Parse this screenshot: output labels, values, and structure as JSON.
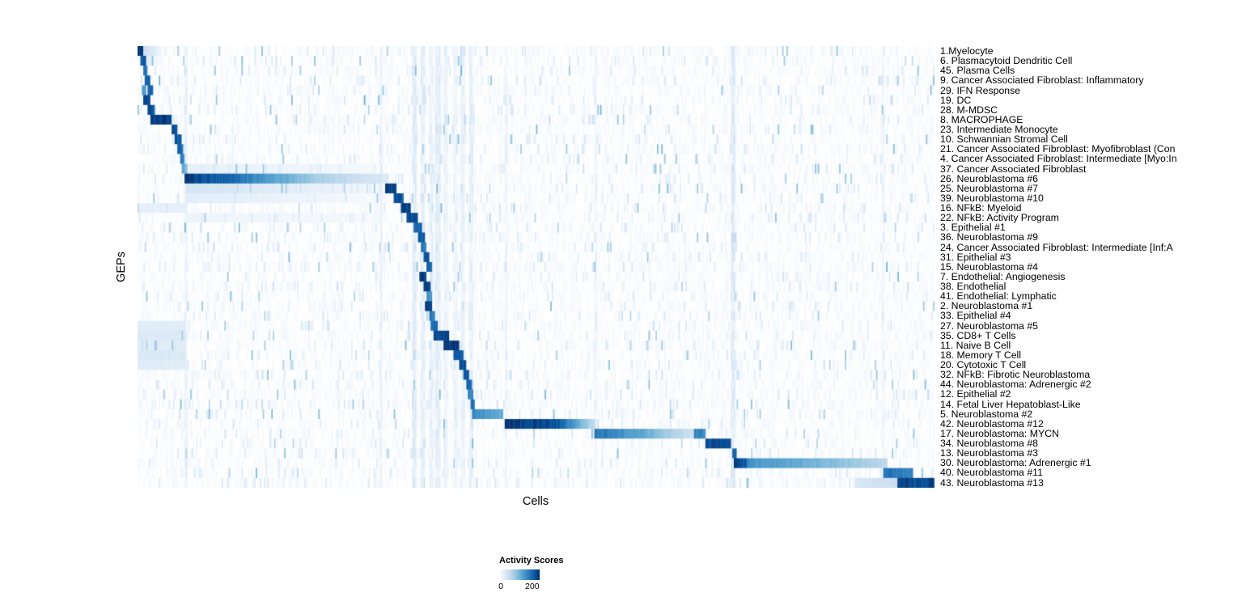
{
  "chart_data": {
    "type": "heatmap",
    "title": "",
    "xlabel": "Cells",
    "ylabel": "GEPs",
    "legend": {
      "title": "Activity Scores",
      "tick_labels": [
        "0",
        "200"
      ],
      "tick_values": [
        0,
        200
      ],
      "vmax": 245,
      "position": "bottom"
    },
    "colormap": [
      [
        0.0,
        "#ffffff"
      ],
      [
        0.13,
        "#deebf7"
      ],
      [
        0.26,
        "#c6dbef"
      ],
      [
        0.39,
        "#9ecae1"
      ],
      [
        0.52,
        "#6baed6"
      ],
      [
        0.65,
        "#4292c6"
      ],
      [
        0.78,
        "#2171b5"
      ],
      [
        0.9,
        "#08519c"
      ],
      [
        1.0,
        "#08306b"
      ]
    ],
    "render": {
      "cols": 560,
      "seed": 42,
      "stripes": [
        [
          0.0595,
          0.002,
          16
        ],
        [
          0.305,
          0.0025,
          16
        ],
        [
          0.347,
          0.0035,
          28
        ],
        [
          0.358,
          0.0025,
          22
        ],
        [
          0.368,
          0.0025,
          18
        ],
        [
          0.377,
          0.0035,
          24
        ],
        [
          0.386,
          0.0025,
          16
        ],
        [
          0.399,
          0.0025,
          14
        ],
        [
          0.408,
          0.0025,
          18
        ],
        [
          0.418,
          0.0025,
          20
        ],
        [
          0.462,
          0.002,
          12
        ],
        [
          0.575,
          0.002,
          10
        ],
        [
          0.748,
          0.0025,
          30
        ],
        [
          0.937,
          0.002,
          10
        ]
      ]
    },
    "rows": [
      {
        "label": "1.Myelocyte",
        "seg": [
          [
            0.0,
            0.007,
            235,
            235
          ],
          [
            0.007,
            0.03,
            60,
            10
          ]
        ]
      },
      {
        "label": "6. Plasmacytoid Dendritic Cell",
        "seg": [
          [
            0.003,
            0.01,
            215,
            215
          ],
          [
            0.01,
            0.03,
            30,
            8
          ]
        ]
      },
      {
        "label": "45. Plasma Cells",
        "seg": [
          [
            0.006,
            0.012,
            190,
            190
          ]
        ]
      },
      {
        "label": "9. Cancer Associated Fibroblast: Inflammatory",
        "seg": [
          [
            0.008,
            0.016,
            215,
            215
          ]
        ]
      },
      {
        "label": "29. IFN Response",
        "seg": [
          [
            0.004,
            0.009,
            150,
            150
          ],
          [
            0.011,
            0.019,
            205,
            205
          ]
        ]
      },
      {
        "label": "19. DC",
        "seg": [
          [
            0.007,
            0.015,
            225,
            225
          ]
        ]
      },
      {
        "label": "28. M-MDSC",
        "seg": [
          [
            0.011,
            0.021,
            230,
            230
          ]
        ]
      },
      {
        "label": "8. MACROPHAGE",
        "seg": [
          [
            0.016,
            0.042,
            240,
            240
          ]
        ]
      },
      {
        "label": "23. Intermediate Monocyte",
        "seg": [
          [
            0.042,
            0.05,
            230,
            230
          ]
        ]
      },
      {
        "label": "10. Schwannian Stromal Cell",
        "seg": [
          [
            0.045,
            0.054,
            215,
            215
          ]
        ]
      },
      {
        "label": "21. Cancer Associated Fibroblast: Myofibroblast (Con",
        "seg": [
          [
            0.049,
            0.057,
            205,
            205
          ]
        ]
      },
      {
        "label": "4. Cancer Associated Fibroblast: Intermediate [Myo:In",
        "seg": [
          [
            0.052,
            0.059,
            195,
            160
          ]
        ]
      },
      {
        "label": "37. Cancer Associated Fibroblast",
        "seg": [
          [
            0.054,
            0.061,
            150,
            110
          ],
          [
            0.061,
            0.3,
            25,
            10
          ]
        ]
      },
      {
        "label": "26. Neuroblastoma #6",
        "seg": [
          [
            0.058,
            0.105,
            246,
            210
          ],
          [
            0.105,
            0.225,
            210,
            90
          ],
          [
            0.225,
            0.315,
            90,
            30
          ]
        ]
      },
      {
        "label": "25. Neuroblastoma #7",
        "seg": [
          [
            0.06,
            0.31,
            45,
            12
          ],
          [
            0.311,
            0.325,
            235,
            235
          ]
        ]
      },
      {
        "label": "39. Neuroblastoma #10",
        "seg": [
          [
            0.06,
            0.31,
            30,
            8
          ],
          [
            0.321,
            0.333,
            220,
            220
          ]
        ]
      },
      {
        "label": "16. NFkB: Myeloid",
        "seg": [
          [
            0.0,
            0.06,
            25,
            25
          ],
          [
            0.33,
            0.342,
            235,
            235
          ]
        ]
      },
      {
        "label": "22. NFkB: Activity Program",
        "seg": [
          [
            0.06,
            0.31,
            18,
            8
          ],
          [
            0.338,
            0.352,
            230,
            230
          ]
        ]
      },
      {
        "label": "3. Epithelial #1",
        "seg": [
          [
            0.347,
            0.356,
            205,
            205
          ]
        ]
      },
      {
        "label": "36. Neuroblastoma #9",
        "seg": [
          [
            0.352,
            0.36,
            215,
            215
          ],
          [
            0.745,
            0.753,
            60,
            60
          ]
        ]
      },
      {
        "label": "24. Cancer Associated Fibroblast: Intermediate [Inf:A",
        "seg": [
          [
            0.355,
            0.362,
            185,
            185
          ]
        ]
      },
      {
        "label": "31. Epithelial #3",
        "seg": [
          [
            0.358,
            0.366,
            225,
            225
          ]
        ]
      },
      {
        "label": "15. Neuroblastoma #4",
        "seg": [
          [
            0.362,
            0.37,
            205,
            205
          ]
        ]
      },
      {
        "label": "7. Endothelial: Angiogenesis",
        "seg": [
          [
            0.353,
            0.362,
            240,
            240
          ]
        ]
      },
      {
        "label": "38. Endothelial",
        "seg": [
          [
            0.358,
            0.368,
            232,
            232
          ]
        ]
      },
      {
        "label": "41. Endothelial: Lymphatic",
        "seg": [
          [
            0.363,
            0.37,
            155,
            155
          ]
        ]
      },
      {
        "label": "2. Neuroblastoma #1",
        "seg": [
          [
            0.36,
            0.369,
            242,
            242
          ]
        ]
      },
      {
        "label": "33. Epithelial #4",
        "seg": [
          [
            0.366,
            0.373,
            185,
            185
          ]
        ]
      },
      {
        "label": "27. Neuroblastoma #5",
        "seg": [
          [
            0.0,
            0.06,
            30,
            30
          ],
          [
            0.368,
            0.376,
            205,
            205
          ]
        ]
      },
      {
        "label": "35. CD8+ T Cells",
        "seg": [
          [
            0.0,
            0.06,
            35,
            35
          ],
          [
            0.372,
            0.39,
            235,
            235
          ]
        ]
      },
      {
        "label": "11. Naive B Cell",
        "seg": [
          [
            0.0,
            0.06,
            30,
            30
          ],
          [
            0.384,
            0.404,
            245,
            245
          ]
        ]
      },
      {
        "label": "18. Memory T Cell",
        "seg": [
          [
            0.0,
            0.06,
            35,
            35
          ],
          [
            0.397,
            0.408,
            215,
            215
          ]
        ]
      },
      {
        "label": "20. Cytotoxic T Cell",
        "seg": [
          [
            0.0,
            0.06,
            30,
            30
          ],
          [
            0.403,
            0.412,
            222,
            222
          ]
        ]
      },
      {
        "label": "32. NFkB: Fibrotic Neuroblastoma",
        "seg": [
          [
            0.408,
            0.416,
            212,
            212
          ]
        ]
      },
      {
        "label": "44. Neuroblastoma: Adrenergic #2",
        "seg": [
          [
            0.412,
            0.419,
            202,
            202
          ]
        ]
      },
      {
        "label": "12. Epithelial #2",
        "seg": [
          [
            0.4145,
            0.4205,
            175,
            175
          ]
        ]
      },
      {
        "label": "14. Fetal Liver Hepatoblast-Like",
        "seg": [
          [
            0.417,
            0.4235,
            192,
            192
          ]
        ]
      },
      {
        "label": "5. Neuroblastoma #2",
        "seg": [
          [
            0.4195,
            0.459,
            170,
            130
          ]
        ]
      },
      {
        "label": "42. Neuroblastoma #12",
        "seg": [
          [
            0.461,
            0.525,
            244,
            225
          ],
          [
            0.525,
            0.575,
            225,
            60
          ]
        ]
      },
      {
        "label": "17. Neuroblastoma: MYCN",
        "seg": [
          [
            0.574,
            0.63,
            190,
            140
          ],
          [
            0.63,
            0.698,
            140,
            50
          ],
          [
            0.698,
            0.712,
            180,
            170
          ]
        ]
      },
      {
        "label": "34. Neuroblastoma #8",
        "seg": [
          [
            0.712,
            0.745,
            232,
            232
          ]
        ]
      },
      {
        "label": "13. Neuroblastoma #3",
        "seg": [
          [
            0.746,
            0.753,
            205,
            205
          ]
        ]
      },
      {
        "label": "30. Neuroblastoma: Adrenergic #1",
        "seg": [
          [
            0.748,
            0.764,
            242,
            210
          ],
          [
            0.764,
            0.87,
            165,
            115
          ],
          [
            0.87,
            0.942,
            115,
            70
          ]
        ]
      },
      {
        "label": "40. Neuroblastoma #11",
        "seg": [
          [
            0.936,
            0.974,
            200,
            175
          ]
        ]
      },
      {
        "label": "43. Neuroblastoma #13",
        "seg": [
          [
            0.9,
            0.955,
            40,
            60
          ],
          [
            0.955,
            1.0,
            230,
            236
          ]
        ]
      }
    ]
  }
}
